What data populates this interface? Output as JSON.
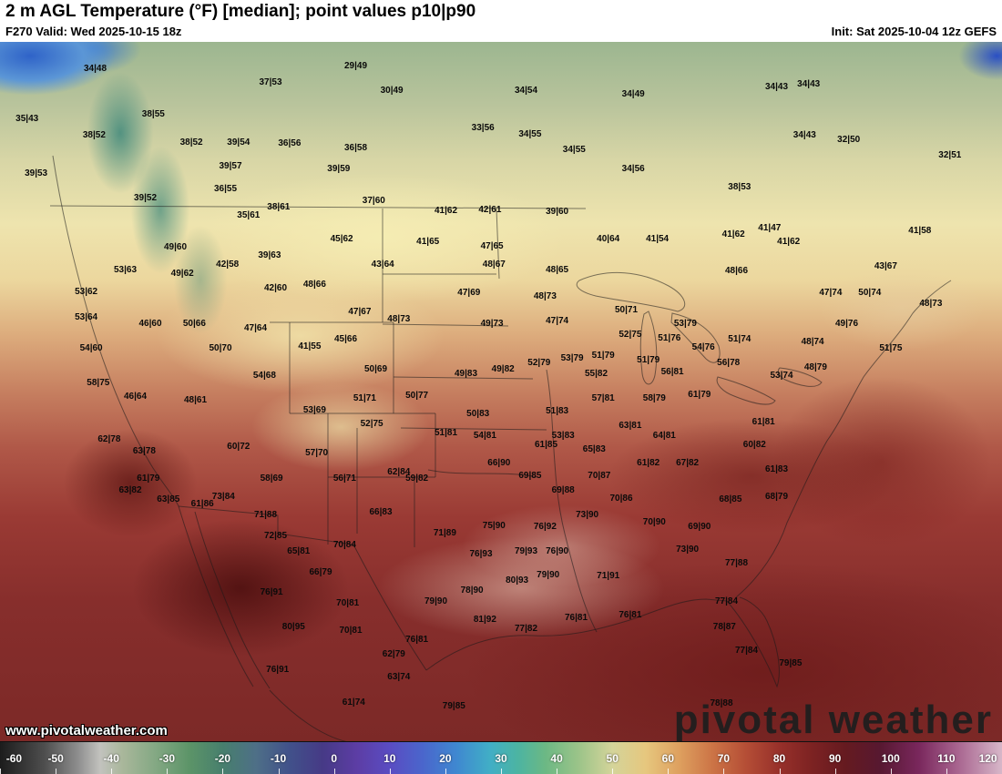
{
  "header": {
    "title": "2 m AGL Temperature (°F) [median]; point values p10|p90",
    "valid": "F270 Valid: Wed 2025-10-15 18z",
    "init": "Init: Sat 2025-10-04 12z GEFS"
  },
  "watermark": {
    "site": "www.pivotalweather.com",
    "brand": "pivotal weather"
  },
  "colorbar": {
    "min": -60,
    "max": 120,
    "ticks": [
      -60,
      -50,
      -40,
      -30,
      -20,
      -10,
      0,
      10,
      20,
      30,
      40,
      50,
      60,
      70,
      80,
      90,
      100,
      110,
      120
    ],
    "stops": [
      {
        "v": -60,
        "c": "#1c1c1c"
      },
      {
        "v": -52,
        "c": "#4e4e4e"
      },
      {
        "v": -46,
        "c": "#8e8e8e"
      },
      {
        "v": -42,
        "c": "#c2c2be"
      },
      {
        "v": -38,
        "c": "#a9b79b"
      },
      {
        "v": -32,
        "c": "#83a883"
      },
      {
        "v": -26,
        "c": "#5c9468"
      },
      {
        "v": -20,
        "c": "#477f6d"
      },
      {
        "v": -14,
        "c": "#4e6f87"
      },
      {
        "v": -8,
        "c": "#41518a"
      },
      {
        "v": -2,
        "c": "#463a86"
      },
      {
        "v": 4,
        "c": "#5c3da4"
      },
      {
        "v": 10,
        "c": "#5a4cc2"
      },
      {
        "v": 16,
        "c": "#4a66cc"
      },
      {
        "v": 22,
        "c": "#3f88d0"
      },
      {
        "v": 28,
        "c": "#41aec6"
      },
      {
        "v": 33,
        "c": "#4cb4a2"
      },
      {
        "v": 38,
        "c": "#6cb884"
      },
      {
        "v": 44,
        "c": "#9cc489"
      },
      {
        "v": 50,
        "c": "#d4d49a"
      },
      {
        "v": 56,
        "c": "#e6c77e"
      },
      {
        "v": 62,
        "c": "#dea05f"
      },
      {
        "v": 68,
        "c": "#cc7446"
      },
      {
        "v": 74,
        "c": "#b54e36"
      },
      {
        "v": 80,
        "c": "#97302a"
      },
      {
        "v": 86,
        "c": "#7c2222"
      },
      {
        "v": 92,
        "c": "#651a20"
      },
      {
        "v": 98,
        "c": "#571830"
      },
      {
        "v": 105,
        "c": "#79275c"
      },
      {
        "v": 112,
        "c": "#a8648f"
      },
      {
        "v": 120,
        "c": "#d7b7c9"
      }
    ]
  },
  "map": {
    "labels": [
      [
        9.5,
        3.9,
        "34|48"
      ],
      [
        27.0,
        5.9,
        "37|53"
      ],
      [
        35.5,
        3.5,
        "29|49"
      ],
      [
        39.1,
        7.0,
        "30|49"
      ],
      [
        52.5,
        7.0,
        "34|54"
      ],
      [
        63.2,
        7.5,
        "34|49"
      ],
      [
        77.5,
        6.5,
        "34|43"
      ],
      [
        80.7,
        6.1,
        "34|43"
      ],
      [
        2.7,
        11.1,
        "35|43"
      ],
      [
        15.3,
        10.4,
        "38|55"
      ],
      [
        48.2,
        12.4,
        "33|56"
      ],
      [
        52.9,
        13.3,
        "34|55"
      ],
      [
        9.4,
        13.4,
        "38|52"
      ],
      [
        19.1,
        14.4,
        "38|52"
      ],
      [
        23.8,
        14.4,
        "39|54"
      ],
      [
        28.9,
        14.6,
        "36|56"
      ],
      [
        35.5,
        15.2,
        "36|58"
      ],
      [
        57.3,
        15.5,
        "34|55"
      ],
      [
        80.3,
        13.4,
        "34|43"
      ],
      [
        84.7,
        14.0,
        "32|50"
      ],
      [
        23.0,
        17.8,
        "39|57"
      ],
      [
        33.8,
        18.2,
        "39|59"
      ],
      [
        63.2,
        18.2,
        "34|56"
      ],
      [
        94.8,
        16.3,
        "32|51"
      ],
      [
        3.6,
        18.9,
        "39|53"
      ],
      [
        22.5,
        21.1,
        "36|55"
      ],
      [
        14.5,
        22.4,
        "39|52"
      ],
      [
        37.3,
        22.8,
        "37|60"
      ],
      [
        44.5,
        24.2,
        "41|62"
      ],
      [
        48.9,
        24.1,
        "42|61"
      ],
      [
        55.6,
        24.3,
        "39|60"
      ],
      [
        73.8,
        20.8,
        "38|53"
      ],
      [
        24.8,
        24.8,
        "35|61"
      ],
      [
        27.8,
        23.7,
        "38|61"
      ],
      [
        76.8,
        26.7,
        "41|47"
      ],
      [
        73.2,
        27.6,
        "41|62"
      ],
      [
        78.7,
        28.6,
        "41|62"
      ],
      [
        34.1,
        28.2,
        "45|62"
      ],
      [
        42.7,
        28.6,
        "41|65"
      ],
      [
        49.1,
        29.3,
        "47|65"
      ],
      [
        60.7,
        28.2,
        "40|64"
      ],
      [
        65.6,
        28.2,
        "41|54"
      ],
      [
        91.8,
        27.0,
        "41|58"
      ],
      [
        17.5,
        29.4,
        "49|60"
      ],
      [
        22.7,
        31.9,
        "42|58"
      ],
      [
        26.9,
        30.6,
        "39|63"
      ],
      [
        38.2,
        31.9,
        "43|64"
      ],
      [
        49.3,
        31.9,
        "48|67"
      ],
      [
        55.6,
        32.6,
        "48|65"
      ],
      [
        73.5,
        32.8,
        "48|66"
      ],
      [
        88.4,
        32.1,
        "43|67"
      ],
      [
        12.5,
        32.6,
        "53|63"
      ],
      [
        18.2,
        33.2,
        "49|62"
      ],
      [
        27.5,
        35.2,
        "42|60"
      ],
      [
        31.4,
        34.7,
        "48|66"
      ],
      [
        46.8,
        35.9,
        "47|69"
      ],
      [
        54.4,
        36.4,
        "48|73"
      ],
      [
        82.9,
        35.9,
        "47|74"
      ],
      [
        86.8,
        35.9,
        "50|74"
      ],
      [
        92.9,
        37.5,
        "48|73"
      ],
      [
        8.6,
        35.8,
        "53|62"
      ],
      [
        15.0,
        40.3,
        "46|60"
      ],
      [
        19.4,
        40.3,
        "50|66"
      ],
      [
        35.9,
        38.6,
        "47|67"
      ],
      [
        39.8,
        39.7,
        "48|73"
      ],
      [
        49.1,
        40.3,
        "49|73"
      ],
      [
        55.6,
        39.9,
        "47|74"
      ],
      [
        62.5,
        38.4,
        "50|71"
      ],
      [
        68.4,
        40.3,
        "53|79"
      ],
      [
        84.5,
        40.3,
        "49|76"
      ],
      [
        8.6,
        39.4,
        "53|64"
      ],
      [
        25.5,
        41.0,
        "47|64"
      ],
      [
        30.9,
        43.6,
        "41|55"
      ],
      [
        34.5,
        42.5,
        "45|66"
      ],
      [
        9.1,
        43.8,
        "54|60"
      ],
      [
        22.0,
        43.8,
        "50|70"
      ],
      [
        62.9,
        41.9,
        "52|75"
      ],
      [
        66.8,
        42.4,
        "51|76"
      ],
      [
        70.2,
        43.7,
        "54|76"
      ],
      [
        73.8,
        42.5,
        "51|74"
      ],
      [
        81.1,
        42.9,
        "48|74"
      ],
      [
        88.9,
        43.8,
        "51|75"
      ],
      [
        37.5,
        46.8,
        "50|69"
      ],
      [
        46.5,
        47.5,
        "49|83"
      ],
      [
        50.2,
        46.8,
        "49|82"
      ],
      [
        53.8,
        45.9,
        "52|79"
      ],
      [
        57.1,
        45.3,
        "53|79"
      ],
      [
        60.2,
        44.9,
        "51|79"
      ],
      [
        59.5,
        47.5,
        "55|82"
      ],
      [
        64.7,
        45.5,
        "51|79"
      ],
      [
        67.1,
        47.2,
        "56|81"
      ],
      [
        72.7,
        45.9,
        "56|78"
      ],
      [
        78.0,
        47.7,
        "53|74"
      ],
      [
        81.4,
        46.6,
        "48|79"
      ],
      [
        9.8,
        48.8,
        "58|75"
      ],
      [
        26.4,
        47.7,
        "54|68"
      ],
      [
        36.4,
        51.0,
        "51|71"
      ],
      [
        41.6,
        50.6,
        "50|77"
      ],
      [
        13.5,
        50.7,
        "46|64"
      ],
      [
        19.5,
        51.2,
        "48|61"
      ],
      [
        31.4,
        52.7,
        "53|69"
      ],
      [
        37.1,
        54.6,
        "52|75"
      ],
      [
        47.7,
        53.2,
        "50|83"
      ],
      [
        55.6,
        52.8,
        "51|83"
      ],
      [
        60.2,
        51.0,
        "57|81"
      ],
      [
        65.3,
        51.0,
        "58|79"
      ],
      [
        69.8,
        50.5,
        "61|79"
      ],
      [
        76.2,
        54.4,
        "61|81"
      ],
      [
        10.9,
        56.8,
        "62|78"
      ],
      [
        44.5,
        55.9,
        "51|81"
      ],
      [
        48.4,
        56.3,
        "54|81"
      ],
      [
        56.2,
        56.3,
        "53|83"
      ],
      [
        62.9,
        54.9,
        "63|81"
      ],
      [
        66.3,
        56.3,
        "64|81"
      ],
      [
        14.4,
        58.5,
        "63|78"
      ],
      [
        23.8,
        57.9,
        "60|72"
      ],
      [
        31.6,
        58.8,
        "57|70"
      ],
      [
        54.5,
        57.6,
        "61|85"
      ],
      [
        59.3,
        58.3,
        "65|83"
      ],
      [
        64.7,
        60.2,
        "61|82"
      ],
      [
        68.6,
        60.2,
        "67|82"
      ],
      [
        75.3,
        57.6,
        "60|82"
      ],
      [
        77.5,
        61.1,
        "61|83"
      ],
      [
        14.8,
        62.4,
        "61|79"
      ],
      [
        13.0,
        64.1,
        "63|82"
      ],
      [
        16.8,
        65.4,
        "63|85"
      ],
      [
        27.1,
        62.4,
        "58|69"
      ],
      [
        34.4,
        62.4,
        "56|71"
      ],
      [
        49.8,
        60.2,
        "66|90"
      ],
      [
        52.9,
        62.0,
        "69|85"
      ],
      [
        56.2,
        64.1,
        "69|88"
      ],
      [
        59.8,
        62.0,
        "70|87"
      ],
      [
        62.0,
        65.3,
        "70|86"
      ],
      [
        20.2,
        66.1,
        "61|86"
      ],
      [
        22.3,
        65.0,
        "73|84"
      ],
      [
        39.8,
        61.5,
        "62|84"
      ],
      [
        41.6,
        62.4,
        "59|82"
      ],
      [
        38.0,
        67.2,
        "66|83"
      ],
      [
        72.9,
        65.4,
        "68|85"
      ],
      [
        77.5,
        65.0,
        "68|79"
      ],
      [
        26.5,
        67.6,
        "71|88"
      ],
      [
        49.3,
        69.2,
        "75|90"
      ],
      [
        54.4,
        69.3,
        "76|92"
      ],
      [
        44.4,
        70.2,
        "71|89"
      ],
      [
        58.6,
        67.6,
        "73|90"
      ],
      [
        65.3,
        68.7,
        "70|90"
      ],
      [
        69.8,
        69.3,
        "69|90"
      ],
      [
        68.6,
        72.6,
        "73|90"
      ],
      [
        27.5,
        70.6,
        "72|85"
      ],
      [
        34.4,
        71.9,
        "70|84"
      ],
      [
        29.8,
        72.8,
        "65|81"
      ],
      [
        32.0,
        75.8,
        "66|79"
      ],
      [
        48.0,
        73.2,
        "76|93"
      ],
      [
        52.5,
        72.8,
        "79|93"
      ],
      [
        55.6,
        72.8,
        "76|90"
      ],
      [
        54.7,
        76.2,
        "79|90"
      ],
      [
        51.6,
        77.0,
        "80|93"
      ],
      [
        60.7,
        76.3,
        "71|91"
      ],
      [
        73.5,
        74.5,
        "77|88"
      ],
      [
        27.1,
        78.7,
        "76|91"
      ],
      [
        34.7,
        80.2,
        "70|81"
      ],
      [
        47.1,
        78.4,
        "78|90"
      ],
      [
        43.5,
        80.0,
        "79|90"
      ],
      [
        48.4,
        82.6,
        "81|92"
      ],
      [
        52.5,
        83.9,
        "77|82"
      ],
      [
        57.5,
        82.3,
        "76|81"
      ],
      [
        62.9,
        81.9,
        "76|81"
      ],
      [
        72.5,
        80.0,
        "77|84"
      ],
      [
        29.3,
        83.6,
        "80|95"
      ],
      [
        35.0,
        84.1,
        "70|81"
      ],
      [
        41.6,
        85.4,
        "76|81"
      ],
      [
        39.3,
        87.5,
        "62|79"
      ],
      [
        72.3,
        83.6,
        "78|87"
      ],
      [
        74.5,
        87.0,
        "77|84"
      ],
      [
        27.7,
        89.7,
        "76|91"
      ],
      [
        39.8,
        90.8,
        "63|74"
      ],
      [
        35.3,
        94.4,
        "61|74"
      ],
      [
        45.3,
        94.9,
        "79|85"
      ],
      [
        72.0,
        94.5,
        "78|88"
      ],
      [
        78.9,
        88.8,
        "79|85"
      ]
    ]
  }
}
